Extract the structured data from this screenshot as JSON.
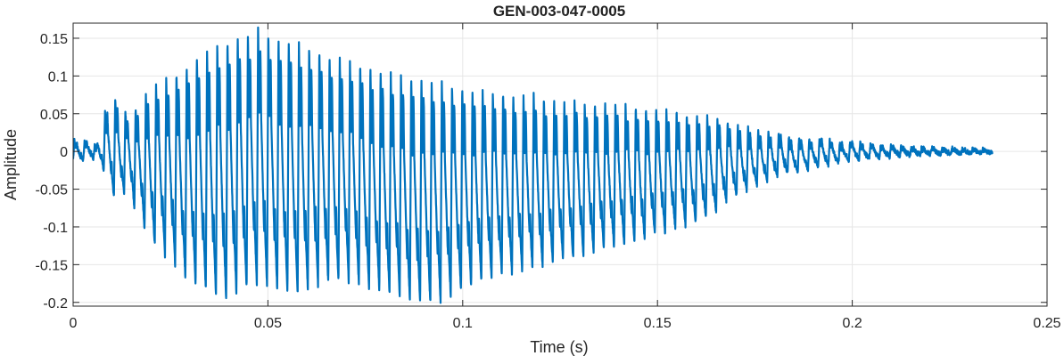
{
  "colors": {
    "series": "#0072BD",
    "axis": "#262626",
    "grid": "#e6e6e6",
    "background": "#ffffff"
  },
  "chart_data": {
    "type": "line",
    "title": "GEN-003-047-0005",
    "xlabel": "Time (s)",
    "ylabel": "Amplitude",
    "xlim": [
      0,
      0.25
    ],
    "ylim": [
      -0.205,
      0.17
    ],
    "xticks": [
      0,
      0.05,
      0.1,
      0.15,
      0.2,
      0.25
    ],
    "xtick_labels": [
      "0",
      "0.05",
      "0.1",
      "0.15",
      "0.2",
      "0.25"
    ],
    "yticks": [
      0.15,
      0.1,
      0.05,
      0,
      -0.05,
      -0.1,
      -0.15,
      -0.2
    ],
    "ytick_labels": [
      "0.15",
      "0.1",
      "0.05",
      "0",
      "-0.05",
      "-0.1",
      "-0.15",
      "-0.2"
    ],
    "grid": true,
    "legend": "none",
    "series": [
      {
        "x": [
          0,
          0.002,
          0.004,
          0.006,
          0.008,
          0.01,
          0.012,
          0.014,
          0.016,
          0.018,
          0.02,
          0.022,
          0.024,
          0.026,
          0.028,
          0.03,
          0.032,
          0.034,
          0.036,
          0.038,
          0.04,
          0.042,
          0.044,
          0.046,
          0.048,
          0.05,
          0.052,
          0.054,
          0.056,
          0.058,
          0.06,
          0.062,
          0.064,
          0.066,
          0.068,
          0.07,
          0.072,
          0.074,
          0.076,
          0.078,
          0.08,
          0.082,
          0.084,
          0.086,
          0.088,
          0.09,
          0.092,
          0.094,
          0.096,
          0.098,
          0.1,
          0.102,
          0.104,
          0.106,
          0.108,
          0.11,
          0.112,
          0.114,
          0.116,
          0.118,
          0.12,
          0.122,
          0.124,
          0.126,
          0.128,
          0.13,
          0.132,
          0.134,
          0.136,
          0.138,
          0.14,
          0.142,
          0.144,
          0.146,
          0.148,
          0.15,
          0.152,
          0.154,
          0.156,
          0.158,
          0.16,
          0.162,
          0.164,
          0.166,
          0.168,
          0.17,
          0.172,
          0.174,
          0.176,
          0.178,
          0.18,
          0.182,
          0.184,
          0.186,
          0.188,
          0.19,
          0.192,
          0.194,
          0.196,
          0.198,
          0.2,
          0.202,
          0.204,
          0.206,
          0.208,
          0.21,
          0.212,
          0.214,
          0.216,
          0.218,
          0.22,
          0.222,
          0.224,
          0.226,
          0.228,
          0.23,
          0.232,
          0.234,
          0.236
        ],
        "envelope_upper": [
          0.015,
          0.012,
          0.015,
          0.01,
          0.05,
          0.075,
          0.065,
          0.05,
          0.06,
          0.075,
          0.085,
          0.095,
          0.1,
          0.105,
          0.11,
          0.12,
          0.13,
          0.135,
          0.14,
          0.145,
          0.15,
          0.155,
          0.155,
          0.16,
          0.165,
          0.16,
          0.155,
          0.15,
          0.15,
          0.145,
          0.14,
          0.14,
          0.135,
          0.13,
          0.13,
          0.125,
          0.12,
          0.12,
          0.115,
          0.11,
          0.11,
          0.105,
          0.105,
          0.1,
          0.1,
          0.1,
          0.095,
          0.095,
          0.09,
          0.09,
          0.09,
          0.085,
          0.085,
          0.085,
          0.08,
          0.08,
          0.08,
          0.075,
          0.075,
          0.075,
          0.075,
          0.07,
          0.07,
          0.07,
          0.07,
          0.07,
          0.065,
          0.065,
          0.065,
          0.065,
          0.065,
          0.06,
          0.06,
          0.06,
          0.06,
          0.06,
          0.055,
          0.055,
          0.055,
          0.05,
          0.05,
          0.05,
          0.045,
          0.045,
          0.04,
          0.035,
          0.035,
          0.03,
          0.03,
          0.025,
          0.025,
          0.025,
          0.02,
          0.02,
          0.02,
          0.015,
          0.02,
          0.015,
          0.015,
          0.012,
          0.015,
          0.012,
          0.01,
          0.01,
          0.008,
          0.008,
          0.007,
          0.006,
          0.006,
          0.005,
          0.005,
          0.004,
          0.004,
          0.004,
          0.003,
          0.003,
          0.003,
          0.002,
          0.002
        ],
        "envelope_lower": [
          -0.01,
          -0.012,
          -0.008,
          -0.01,
          -0.03,
          -0.06,
          -0.06,
          -0.05,
          -0.08,
          -0.1,
          -0.12,
          -0.13,
          -0.14,
          -0.15,
          -0.165,
          -0.175,
          -0.18,
          -0.185,
          -0.19,
          -0.195,
          -0.2,
          -0.19,
          -0.185,
          -0.18,
          -0.175,
          -0.18,
          -0.185,
          -0.185,
          -0.19,
          -0.19,
          -0.185,
          -0.18,
          -0.18,
          -0.175,
          -0.175,
          -0.17,
          -0.175,
          -0.18,
          -0.185,
          -0.185,
          -0.19,
          -0.19,
          -0.195,
          -0.2,
          -0.205,
          -0.2,
          -0.205,
          -0.2,
          -0.195,
          -0.19,
          -0.185,
          -0.18,
          -0.175,
          -0.17,
          -0.17,
          -0.165,
          -0.165,
          -0.16,
          -0.16,
          -0.155,
          -0.155,
          -0.15,
          -0.15,
          -0.145,
          -0.145,
          -0.14,
          -0.14,
          -0.135,
          -0.13,
          -0.13,
          -0.125,
          -0.125,
          -0.12,
          -0.12,
          -0.115,
          -0.11,
          -0.11,
          -0.105,
          -0.1,
          -0.1,
          -0.095,
          -0.09,
          -0.085,
          -0.075,
          -0.065,
          -0.06,
          -0.055,
          -0.05,
          -0.045,
          -0.04,
          -0.035,
          -0.03,
          -0.03,
          -0.028,
          -0.025,
          -0.022,
          -0.02,
          -0.018,
          -0.016,
          -0.014,
          -0.012,
          -0.011,
          -0.01,
          -0.009,
          -0.008,
          -0.007,
          -0.006,
          -0.006,
          -0.005,
          -0.005,
          -0.004,
          -0.004,
          -0.004,
          -0.003,
          -0.003,
          -0.003,
          -0.002,
          -0.002,
          -0.002
        ],
        "period": 0.00262
      }
    ]
  }
}
